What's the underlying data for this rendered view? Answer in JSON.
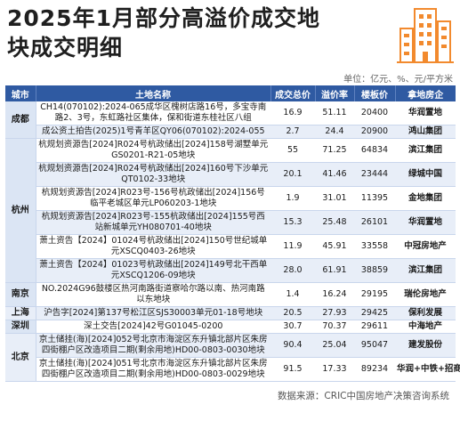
{
  "title": {
    "line1": "2025年1月部分高溢价成交地",
    "line2": "块成交明细"
  },
  "logo_icon": "city-buildings-icon",
  "colors": {
    "header_bg": "#2f5aa2",
    "logo_orange": "#f28a2e",
    "row_shade": "#e8eef8"
  },
  "units": "单位：亿元、%、元/平方米",
  "table": {
    "headers": [
      "城市",
      "土地名称",
      "成交总价",
      "溢价率",
      "楼板价",
      "拿地房企"
    ],
    "groups": [
      {
        "city": "成都",
        "rows": [
          {
            "name": "CH14(070102):2024-065成华区槐树店路16号，多宝寺南路2、3号，东虹路社区集体，保和街道东桂社区八组",
            "price": "16.9",
            "premium": "51.11",
            "floor_price": "20400",
            "developer": "华润置地"
          },
          {
            "name": "成公资土拍告(2025)1号青羊区QY06(070102):2024-055",
            "price": "2.7",
            "premium": "24.4",
            "floor_price": "20900",
            "developer": "鸿山集团"
          }
        ]
      },
      {
        "city": "杭州",
        "rows": [
          {
            "name": "杭规划资源告[2024]R024号杭政储出[2024]158号湖墅单元GS0201-R21-05地块",
            "price": "55",
            "premium": "71.25",
            "floor_price": "64834",
            "developer": "滨江集团"
          },
          {
            "name": "杭规划资源告[2024]R024号杭政储出[2024]160号下沙单元QT0102-33地块",
            "price": "20.1",
            "premium": "41.46",
            "floor_price": "23444",
            "developer": "绿城中国"
          },
          {
            "name": "杭规划资源告[2024]R023号-156号杭政储出[2024]156号临平老城区单元LP060203-1地块",
            "price": "1.9",
            "premium": "31.01",
            "floor_price": "11395",
            "developer": "金地集团"
          },
          {
            "name": "杭规划资源告[2024]R023号-155杭政储出[2024]155号西站新城单元YH080701-40地块",
            "price": "15.3",
            "premium": "25.48",
            "floor_price": "26101",
            "developer": "华润置地"
          },
          {
            "name": "萧土资告【2024】01024号杭政储出[2024]150号世纪城单元XSCQ0403-26地块",
            "price": "11.9",
            "premium": "45.91",
            "floor_price": "33558",
            "developer": "中冠房地产"
          },
          {
            "name": "萧土资告【2024】01023号杭政储出[2024]149号北干西单元XSCQ1206-09地块",
            "price": "28.0",
            "premium": "61.91",
            "floor_price": "38859",
            "developer": "滨江集团"
          }
        ]
      },
      {
        "city": "南京",
        "rows": [
          {
            "name": "NO.2024G96鼓楼区热河南路街道察哈尔路以南、热河南路以东地块",
            "price": "1.4",
            "premium": "16.24",
            "floor_price": "29195",
            "developer": "瑞伦房地产"
          }
        ]
      },
      {
        "city": "上海",
        "rows": [
          {
            "name": "沪告字[2024]第137号松江区SJS30003单元01-18号地块",
            "price": "20.5",
            "premium": "27.93",
            "floor_price": "29425",
            "developer": "保利发展"
          }
        ]
      },
      {
        "city": "深圳",
        "rows": [
          {
            "name": "深土交告[2024]42号G01045-0200",
            "price": "30.7",
            "premium": "70.37",
            "floor_price": "29611",
            "developer": "中海地产"
          }
        ]
      },
      {
        "city": "北京",
        "rows": [
          {
            "name": "京土储挂(海)[2024]052号北京市海淀区东升镇北部片区朱房四街棚户区改造项目二期(剩余用地)HD00-0803-0030地块",
            "price": "90.4",
            "premium": "25.04",
            "floor_price": "95047",
            "developer": "建发股份"
          },
          {
            "name": "京土储挂(海)[2024]051号北京市海淀区东升镇北部片区朱房四街棚户区改造项目二期(剩余用地)HD00-0803-0029地块",
            "price": "91.5",
            "premium": "17.33",
            "floor_price": "89234",
            "developer": "华润+中铁+招商"
          }
        ]
      }
    ]
  },
  "source": "数据来源：CRIC中国房地产决策咨询系统"
}
